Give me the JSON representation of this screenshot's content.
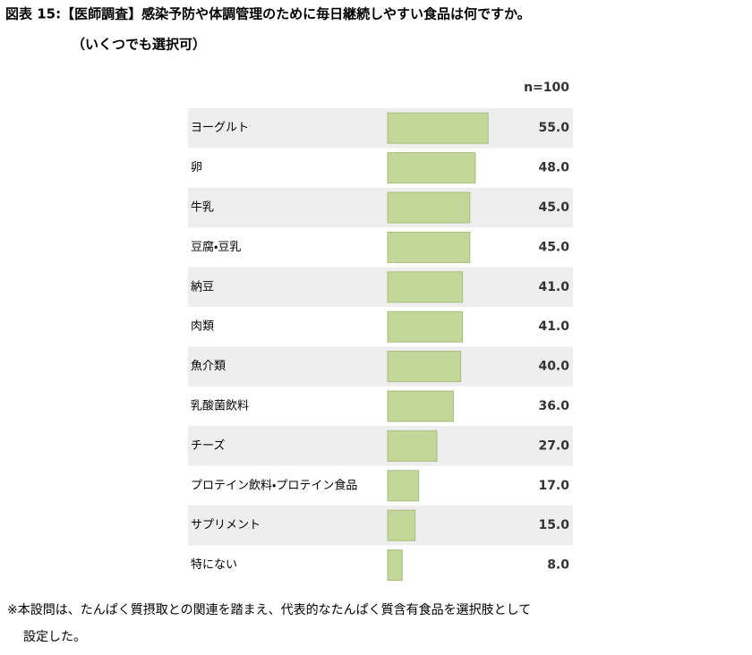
{
  "chart_data": {
    "type": "bar",
    "orientation": "horizontal",
    "title": "図表 15:【医師調査】感染予防や体調管理のために毎日継続しやすい食品は何ですか。",
    "subtitle": "（いくつでも選択可）",
    "annotation": "n=100",
    "categories": [
      "ヨーグルト",
      "卵",
      "牛乳",
      "豆腐・豆乳",
      "納豆",
      "肉類",
      "魚介類",
      "乳酸菌飲料",
      "チーズ",
      "プロテイン飲料・プロテイン食品",
      "サプリメント",
      "特にない"
    ],
    "values": [
      55,
      48,
      45,
      45,
      41,
      41,
      40,
      36,
      27,
      17,
      15,
      8
    ],
    "value_labels": [
      "55.0",
      "48.0",
      "45.0",
      "45.0",
      "41.0",
      "41.0",
      "40.0",
      "36.0",
      "27.0",
      "17.0",
      "15.0",
      "8.0"
    ],
    "color": "#c4d79b",
    "notes": [
      "※本設問は、たんぱく質摂取との関連を踏まえ、代表的なたんぱく質含有食品を選択肢として",
      "設定した。"
    ]
  }
}
